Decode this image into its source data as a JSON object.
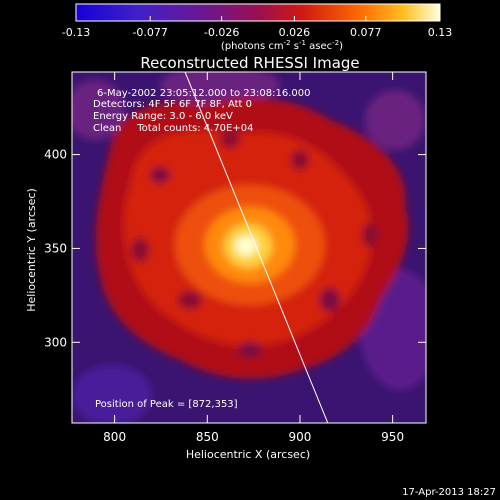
{
  "colorbar": {
    "ticks": [
      "-0.13",
      "-0.077",
      "-0.026",
      "0.026",
      "0.077",
      "0.13"
    ],
    "units_prefix": "(photons cm",
    "units_mid": " s",
    "units_mid2": " asec",
    "units_suffix": ")",
    "sup_neg2": "-2",
    "sup_neg1": "-1"
  },
  "chart_data": {
    "type": "heatmap",
    "title": "Reconstructed RHESSI Image",
    "xlabel": "Heliocentric X (arcsec)",
    "ylabel": "Heliocentric Y (arcsec)",
    "xlim": [
      777,
      968
    ],
    "ylim": [
      257,
      444
    ],
    "x_ticks": [
      800,
      850,
      900,
      950
    ],
    "y_ticks": [
      300,
      350,
      400
    ],
    "colorbar_range": [
      -0.13,
      0.13
    ],
    "peak": [
      872,
      353
    ],
    "limb_line": [
      [
        838,
        444
      ],
      [
        915,
        257
      ]
    ],
    "annotations": [
      "6-May-2002 23:05:12.000 to 23:08:16.000",
      "Detectors: 4F 5F 6F 7F 8F, Att 0",
      "Energy Range: 3.0 - 6.0 keV",
      "Clean     Total counts: 4.70E+04"
    ],
    "peak_label": "Position of Peak = [872,353]"
  },
  "footer": {
    "date": "17-Apr-2013 18:27"
  }
}
